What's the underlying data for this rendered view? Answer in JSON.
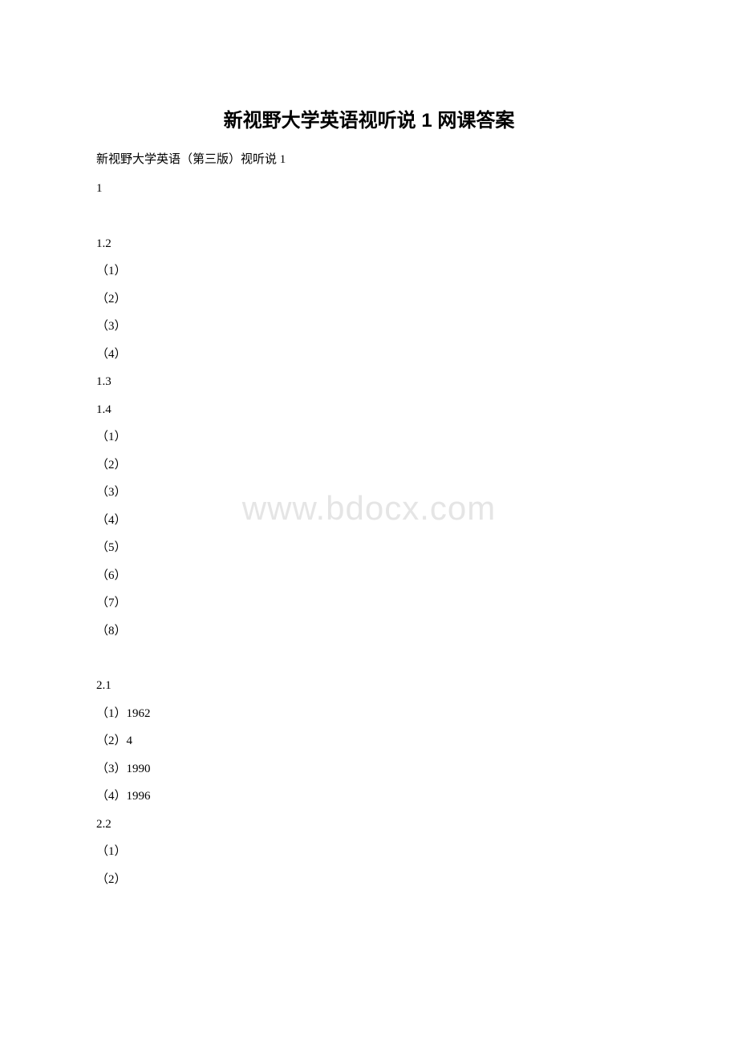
{
  "watermark": "www.bdocx.com",
  "title": "新视野大学英语视听说 1 网课答案",
  "subtitle": "新视野大学英语（第三版）视听说 1",
  "lines": [
    "1",
    "SPACER",
    "1.2",
    "（1）",
    "（2）",
    "（3）",
    "（4）",
    "1.3",
    "1.4",
    "（1）",
    "（2）",
    "（3）",
    "（4）",
    "（5）",
    "（6）",
    "（7）",
    "（8）",
    "SPACER",
    "2.1",
    "（1）1962",
    "（2）4",
    "（3）1990",
    "（4）1996",
    "2.2",
    "（1）",
    "（2）"
  ]
}
